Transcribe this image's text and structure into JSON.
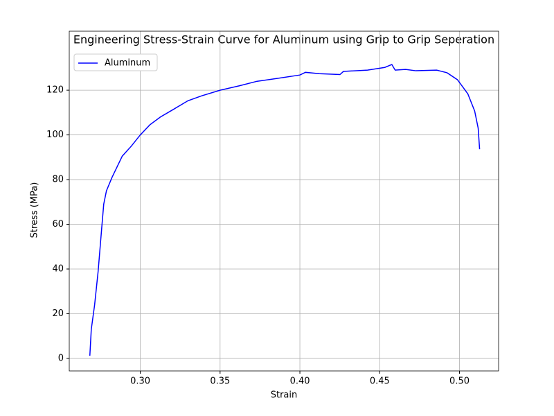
{
  "chart_data": {
    "type": "line",
    "title": "Engineering Stress-Strain Curve for Aluminum using Grip to Grip Seperation",
    "x_label": "Strain",
    "y_label": "Stress (MPa)",
    "x": [
      0.2684,
      0.2693,
      0.2714,
      0.2736,
      0.2758,
      0.2771,
      0.2788,
      0.2823,
      0.2887,
      0.2944,
      0.3,
      0.306,
      0.3126,
      0.3212,
      0.3299,
      0.3385,
      0.35,
      0.3623,
      0.3732,
      0.3861,
      0.4,
      0.4035,
      0.4121,
      0.4251,
      0.4273,
      0.4424,
      0.4532,
      0.4576,
      0.4597,
      0.4662,
      0.4727,
      0.4857,
      0.4922,
      0.4987,
      0.5052,
      0.5095,
      0.5117,
      0.5126
    ],
    "series": [
      {
        "name": "Aluminum",
        "color": "#0000ff",
        "values": [
          1.2,
          13,
          24,
          39,
          58,
          69,
          75,
          81,
          90.5,
          95,
          100,
          104.5,
          108,
          111.6,
          115.3,
          117.5,
          120,
          122,
          124,
          125.3,
          126.8,
          128,
          127.4,
          127,
          128.4,
          129,
          130.2,
          131.5,
          129,
          129.3,
          128.7,
          129,
          127.8,
          124.7,
          118.4,
          110.7,
          103,
          93.6
        ]
      }
    ],
    "xlim": [
      0.2555,
      0.5245
    ],
    "ylim": [
      -5.6,
      146.4
    ],
    "xticks": [
      {
        "value": 0.3,
        "label": "0.30"
      },
      {
        "value": 0.35,
        "label": "0.35"
      },
      {
        "value": 0.4,
        "label": "0.40"
      },
      {
        "value": 0.45,
        "label": "0.45"
      },
      {
        "value": 0.5,
        "label": "0.50"
      }
    ],
    "yticks": [
      0,
      20,
      40,
      60,
      80,
      100,
      120
    ],
    "grid": true,
    "legend": "upper-left"
  }
}
